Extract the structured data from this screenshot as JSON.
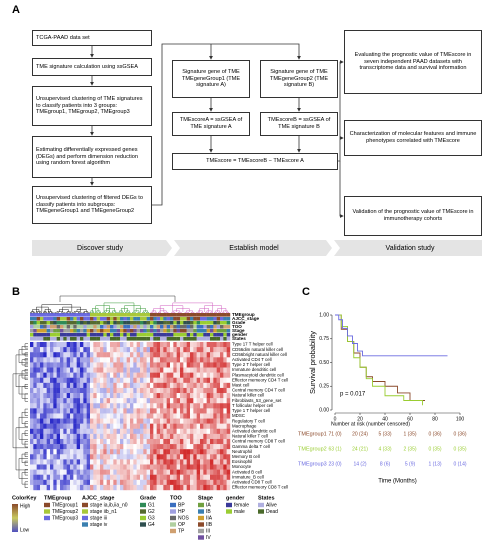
{
  "panel_labels": [
    "A",
    "B",
    "C"
  ],
  "flowchart": {
    "boxes": [
      "TCGA-PAAD data set",
      "TME signature calculation using ssGSEA",
      "Unsupervised clustering of TME signatures to classify patients into 3 groups: TMEgroup1, TMEgroup2, TMEgroup3",
      "Estimating differentially expressed genes (DEGs) and perform dimension reduction using random forest algorithm",
      "Unsupervised clustering of filtered DEGs to classify patients into subgroups: TMEgeneGroup1 and TMEgeneGroup2",
      "Signature gene of TME TMEgeneGroup1 (TME signature A)",
      "Signature gene of TME TMEgeneGroup2 (TME signature B)",
      "TMEscoreA = ssGSEA of TME signature A",
      "TMEscoreB = ssGSEA of TME signature B",
      "TMEscore = TMEscoreB − TMEscore A",
      "Evaluating the prognostic value of TMEscore in seven independent PAAD datasets with transcriptome data and survival information",
      "Characterization of molecular features and immune phenotypes correlated with TMEscore",
      "Validation of the prognostic value of TMEscore in immunotherapy cohorts"
    ],
    "stages": [
      "Discover study",
      "Establish model",
      "Validation study"
    ]
  },
  "heatmap": {
    "annotation_tracks": [
      "TMEgroup",
      "AJCC_stage",
      "Grade",
      "TOO",
      "Stage",
      "gender",
      "States"
    ],
    "rows": [
      "Type 17 T helper cell",
      "CD56dim natural killer cell",
      "CD56bright natural killer cell",
      "Activated CD4 T cell",
      "Type 2 T helper cell",
      "Immature dendritic cell",
      "Plasmacytoid dendritic cell",
      "Effector memeory CD4 T cell",
      "Mast cell",
      "Central memory CD4 T cell",
      "Natural killer cell",
      "Fibroblasts_53_gene_set",
      "T follicular helper cell",
      "Type 1 T helper cell",
      "MDSC",
      "Regulatory T cell",
      "Macrophage",
      "Activated dendritic cell",
      "Natural killer T cell",
      "Central memory CD8 T cell",
      "Gamma delta T cell",
      "Neutrophil",
      "Memory B cell",
      "Eosinophil",
      "Monocyte",
      "Activated B cell",
      "Immature_B cell",
      "Activated CD8 T cell",
      "Effector memeory CD8 T cell"
    ],
    "colorkey": {
      "title": "ColorKey",
      "high": "High",
      "low": "Low"
    },
    "legend": [
      {
        "title": "TMEgroup",
        "items": [
          "TMEgroup1",
          "TMEgroup2",
          "TMEgroup3"
        ],
        "colors": [
          "#8b4a2b",
          "#a8c83a",
          "#6a6ae0"
        ]
      },
      {
        "title": "AJCC_stage",
        "items": [
          "stage ia,ib,iia_n0",
          "stage iib_n1",
          "stage iii",
          "stage iv"
        ],
        "colors": [
          "#8b4a2b",
          "#a8c83a",
          "#6a6ae0",
          "#3a7fb0"
        ]
      },
      {
        "title": "Grade",
        "items": [
          "G1",
          "G2",
          "G3",
          "G4"
        ],
        "colors": [
          "#2e8b57",
          "#556b2f",
          "#9acd32",
          "#2f4f4f"
        ]
      },
      {
        "title": "TOO",
        "items": [
          "BP",
          "HP",
          "NOS",
          "OP",
          "TP"
        ],
        "colors": [
          "#3a6fc0",
          "#a0a0e0",
          "#6a6a6a",
          "#b0d0a0",
          "#d0a070"
        ]
      },
      {
        "title": "Stage",
        "items": [
          "IA",
          "IB",
          "IIA",
          "IIB",
          "III",
          "IV"
        ],
        "colors": [
          "#70a040",
          "#3a7fb0",
          "#d0a030",
          "#8b4a2b",
          "#a0a0a0",
          "#7050a0"
        ]
      },
      {
        "title": "gender",
        "items": [
          "female",
          "male"
        ],
        "colors": [
          "#3a3a9a",
          "#9acd32"
        ]
      },
      {
        "title": "States",
        "items": [
          "Alive",
          "Dead"
        ],
        "colors": [
          "#b0b0e0",
          "#4a6a2a"
        ]
      }
    ]
  },
  "chart_data": {
    "type": "line",
    "ylabel": "Survival probability",
    "xlabel": "Time (Months)",
    "xlim": [
      0,
      100
    ],
    "ylim": [
      0,
      1
    ],
    "xticks": [
      0,
      20,
      40,
      60,
      80,
      100
    ],
    "yticks": [
      {
        "value": 0,
        "label": "0.00"
      },
      {
        "value": 0.25,
        "label": "0.25"
      },
      {
        "value": 0.5,
        "label": "0.50"
      },
      {
        "value": 0.75,
        "label": "0.75"
      },
      {
        "value": 1,
        "label": "1.00"
      }
    ],
    "annotation": "p = 0.017",
    "risk_title": "Number at risk (number censored)",
    "series": [
      {
        "name": "TMEgroup1",
        "color": "#8b4a2b",
        "x": [
          0,
          5,
          10,
          15,
          20,
          25,
          30,
          40,
          50,
          60,
          72
        ],
        "values": [
          1,
          0.85,
          0.72,
          0.6,
          0.45,
          0.35,
          0.3,
          0.25,
          0.18,
          0.1,
          0.1
        ],
        "risk": [
          "71 (0)",
          "20 (24)",
          "5 (33)",
          "1 (35)",
          "0 (36)",
          "0 (36)"
        ]
      },
      {
        "name": "TMEgroup2",
        "color": "#9acd32",
        "x": [
          0,
          5,
          10,
          15,
          20,
          25,
          30,
          40,
          55,
          70
        ],
        "values": [
          1,
          0.88,
          0.72,
          0.55,
          0.45,
          0.33,
          0.25,
          0.15,
          0.1,
          0.05
        ],
        "risk": [
          "63 (1)",
          "24 (21)",
          "4 (33)",
          "2 (35)",
          "0 (35)",
          "0 (35)"
        ]
      },
      {
        "name": "TMEgroup3",
        "color": "#6a6ae0",
        "x": [
          0,
          3,
          6,
          10,
          14,
          18,
          22,
          90
        ],
        "values": [
          1,
          0.95,
          0.86,
          0.78,
          0.7,
          0.62,
          0.57,
          0.57
        ],
        "risk": [
          "23 (0)",
          "14 (2)",
          "8 (6)",
          "5 (9)",
          "1 (13)",
          "0 (14)"
        ]
      }
    ]
  }
}
